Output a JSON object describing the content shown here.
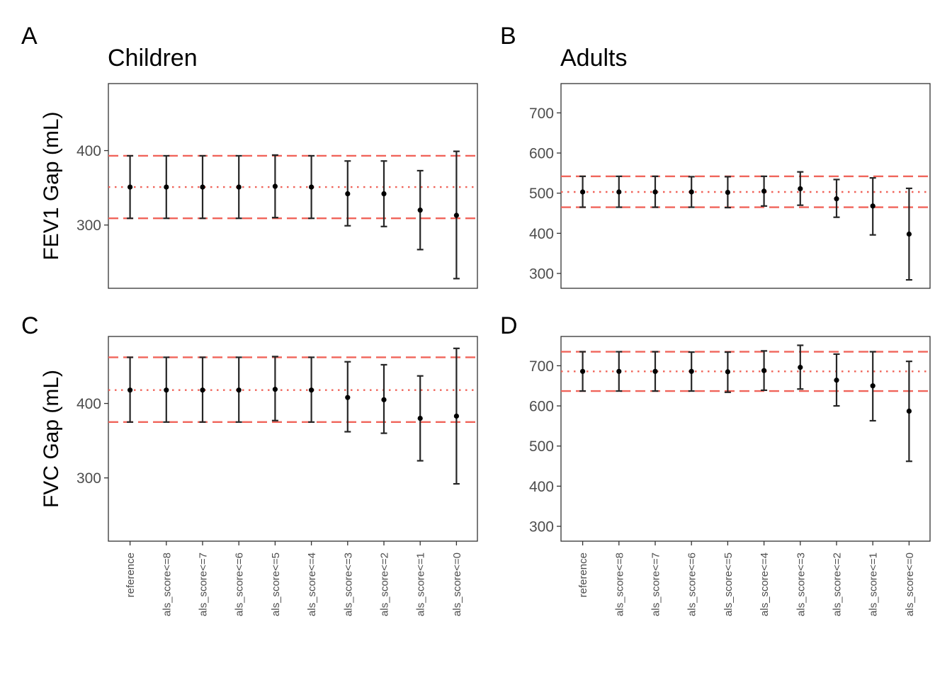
{
  "chart_data": {
    "type": "scatter",
    "categories": [
      "reference",
      "als_score<=8",
      "als_score<=7",
      "als_score<=6",
      "als_score<=5",
      "als_score<=4",
      "als_score<=3",
      "als_score<=2",
      "als_score<=1",
      "als_score<=0"
    ],
    "column_titles": [
      "Children",
      "Adults"
    ],
    "row_ylabels": [
      "FEV1 Gap (mL)",
      "FVC Gap (mL)"
    ],
    "colors": {
      "reference_line": "#f0645a",
      "error_bar": "#262626",
      "point": "#000000"
    },
    "grid": false,
    "panels": [
      {
        "letter": "A",
        "row": 0,
        "col": 0,
        "ylim": [
          215,
          490
        ],
        "yticks": [
          300,
          400
        ],
        "show_xticks": false,
        "ref": {
          "estimate": 351,
          "lower": 309,
          "upper": 393
        },
        "estimate": [
          351,
          351,
          351,
          351,
          352,
          351,
          342,
          342,
          320,
          313
        ],
        "lower": [
          309,
          309,
          309,
          309,
          310,
          309,
          299,
          298,
          267,
          228
        ],
        "upper": [
          393,
          393,
          393,
          393,
          394,
          393,
          386,
          386,
          373,
          399
        ]
      },
      {
        "letter": "B",
        "row": 0,
        "col": 1,
        "ylim": [
          263,
          773
        ],
        "yticks": [
          300,
          400,
          500,
          600,
          700
        ],
        "show_xticks": false,
        "ref": {
          "estimate": 503,
          "lower": 465,
          "upper": 542
        },
        "estimate": [
          503,
          503,
          503,
          503,
          502,
          505,
          511,
          486,
          468,
          398
        ],
        "lower": [
          465,
          465,
          465,
          465,
          464,
          468,
          470,
          440,
          396,
          284
        ],
        "upper": [
          542,
          542,
          542,
          541,
          541,
          542,
          553,
          534,
          538,
          512
        ]
      },
      {
        "letter": "C",
        "row": 1,
        "col": 0,
        "ylim": [
          215,
          490
        ],
        "yticks": [
          300,
          400
        ],
        "show_xticks": true,
        "ref": {
          "estimate": 418,
          "lower": 375,
          "upper": 462
        },
        "estimate": [
          418,
          418,
          418,
          418,
          419,
          418,
          408,
          405,
          380,
          383
        ],
        "lower": [
          375,
          375,
          375,
          375,
          377,
          375,
          362,
          360,
          323,
          292
        ],
        "upper": [
          462,
          462,
          462,
          462,
          463,
          462,
          456,
          452,
          437,
          474
        ]
      },
      {
        "letter": "D",
        "row": 1,
        "col": 1,
        "ylim": [
          263,
          773
        ],
        "yticks": [
          300,
          400,
          500,
          600,
          700
        ],
        "show_xticks": true,
        "ref": {
          "estimate": 686,
          "lower": 637,
          "upper": 735
        },
        "estimate": [
          686,
          686,
          686,
          686,
          685,
          688,
          696,
          664,
          650,
          587
        ],
        "lower": [
          637,
          637,
          637,
          637,
          634,
          639,
          642,
          600,
          563,
          462
        ],
        "upper": [
          735,
          735,
          735,
          734,
          734,
          737,
          751,
          729,
          735,
          711
        ]
      }
    ]
  }
}
